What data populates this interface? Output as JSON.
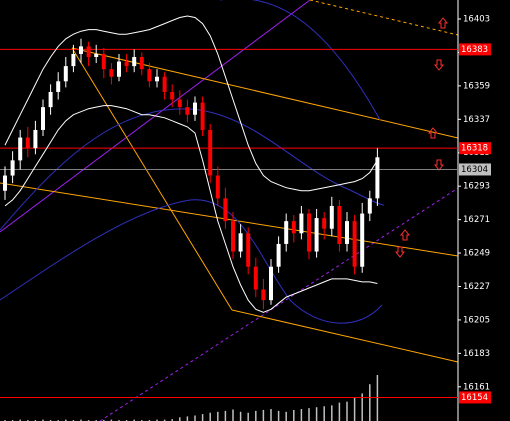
{
  "chart_data": {
    "type": "candlestick",
    "ylim": [
      16138.5,
      16415.5
    ],
    "yticks": [
      16403,
      16381,
      16359,
      16337,
      16315,
      16293,
      16271,
      16249,
      16227,
      16205,
      16183,
      16161
    ],
    "bull_color": "#ffffff",
    "bear_color": "#ff0000",
    "candles": [
      [
        16290,
        16306,
        16284,
        16300
      ],
      [
        16300,
        16316,
        16295,
        16310
      ],
      [
        16310,
        16330,
        16304,
        16325
      ],
      [
        16325,
        16332,
        16312,
        16318
      ],
      [
        16318,
        16336,
        16314,
        16330
      ],
      [
        16330,
        16350,
        16326,
        16345
      ],
      [
        16345,
        16360,
        16340,
        16355
      ],
      [
        16355,
        16368,
        16350,
        16362
      ],
      [
        16362,
        16378,
        16358,
        16372
      ],
      [
        16372,
        16386,
        16368,
        16380
      ],
      [
        16380,
        16390,
        16374,
        16385
      ],
      [
        16385,
        16388,
        16372,
        16378
      ],
      [
        16378,
        16386,
        16374,
        16380
      ],
      [
        16380,
        16384,
        16364,
        16370
      ],
      [
        16370,
        16374,
        16360,
        16365
      ],
      [
        16365,
        16380,
        16362,
        16375
      ],
      [
        16375,
        16380,
        16368,
        16372
      ],
      [
        16372,
        16383,
        16368,
        16378
      ],
      [
        16378,
        16381,
        16366,
        16370
      ],
      [
        16370,
        16374,
        16358,
        16362
      ],
      [
        16362,
        16370,
        16358,
        16365
      ],
      [
        16365,
        16368,
        16350,
        16355
      ],
      [
        16355,
        16360,
        16345,
        16350
      ],
      [
        16350,
        16356,
        16340,
        16345
      ],
      [
        16345,
        16350,
        16335,
        16340
      ],
      [
        16340,
        16352,
        16336,
        16348
      ],
      [
        16348,
        16352,
        16326,
        16330
      ],
      [
        16330,
        16334,
        16295,
        16300
      ],
      [
        16300,
        16306,
        16280,
        16285
      ],
      [
        16285,
        16292,
        16265,
        16270
      ],
      [
        16270,
        16276,
        16245,
        16250
      ],
      [
        16250,
        16268,
        16246,
        16262
      ],
      [
        16262,
        16266,
        16235,
        16240
      ],
      [
        16240,
        16246,
        16220,
        16225
      ],
      [
        16225,
        16232,
        16212,
        16218
      ],
      [
        16218,
        16245,
        16215,
        16240
      ],
      [
        16240,
        16260,
        16236,
        16255
      ],
      [
        16255,
        16275,
        16250,
        16270
      ],
      [
        16270,
        16274,
        16256,
        16262
      ],
      [
        16262,
        16280,
        16258,
        16275
      ],
      [
        16275,
        16278,
        16245,
        16250
      ],
      [
        16250,
        16278,
        16246,
        16272
      ],
      [
        16272,
        16276,
        16258,
        16265
      ],
      [
        16265,
        16286,
        16260,
        16280
      ],
      [
        16280,
        16284,
        16250,
        16255
      ],
      [
        16255,
        16276,
        16250,
        16270
      ],
      [
        16270,
        16274,
        16235,
        16240
      ],
      [
        16240,
        16282,
        16236,
        16275
      ],
      [
        16275,
        16290,
        16270,
        16285
      ],
      [
        16285,
        16318,
        16280,
        16312
      ]
    ],
    "volume": [
      2,
      2,
      3,
      2,
      2,
      3,
      2,
      2,
      3,
      2,
      3,
      2,
      2,
      2,
      3,
      2,
      2,
      3,
      2,
      2,
      3,
      3,
      4,
      8,
      10,
      12,
      15,
      18,
      20,
      22,
      25,
      20,
      18,
      22,
      24,
      26,
      22,
      20,
      24,
      26,
      28,
      30,
      32,
      34,
      40,
      42,
      50,
      60,
      80,
      100
    ],
    "volume_ylim": [
      0,
      100
    ],
    "volume_color": "#c0c0c0",
    "bands": [
      {
        "color": "#ffffff",
        "values": [
          16320,
          16330,
          16340,
          16350,
          16360,
          16370,
          16378,
          16385,
          16390,
          16393,
          16395,
          16396,
          16396,
          16395,
          16394,
          16393,
          16393,
          16394,
          16395,
          16396,
          16398,
          16400,
          16402,
          16404,
          16405,
          16404,
          16400,
          16392,
          16380,
          16365,
          16350,
          16335,
          16320,
          16308,
          16300,
          16296,
          16294,
          16292,
          16291,
          16290,
          16290,
          16291,
          16292,
          16293,
          16294,
          16295,
          16296,
          16298,
          16302,
          16310
        ]
      },
      {
        "color": "#ffffff",
        "values": [
          16280,
          16284,
          16290,
          16298,
          16306,
          16314,
          16322,
          16330,
          16336,
          16340,
          16342,
          16344,
          16345,
          16346,
          16346,
          16345,
          16344,
          16342,
          16340,
          16340,
          16339,
          16338,
          16336,
          16334,
          16332,
          16328,
          16310,
          16290,
          16270,
          16255,
          16240,
          16228,
          16218,
          16212,
          16210,
          16212,
          16216,
          16220,
          16222,
          16224,
          16226,
          16228,
          16230,
          16232,
          16232,
          16232,
          16231,
          16230,
          16230,
          16229
        ]
      }
    ],
    "levels": [
      {
        "value": 16383,
        "color": "#ff0000",
        "label_bg": "#ff0000",
        "label_color": "#ffffff"
      },
      {
        "value": 16318,
        "color": "#ff0000",
        "label_bg": "#ff0000",
        "label_color": "#ffffff"
      },
      {
        "value": 16304,
        "color": "#808080",
        "label_bg": "#c0c0c0",
        "label_color": "#000000"
      },
      {
        "value": 16154,
        "color": "#ff0000",
        "label_bg": "#ff0000",
        "label_color": "#ffffff"
      }
    ]
  }
}
